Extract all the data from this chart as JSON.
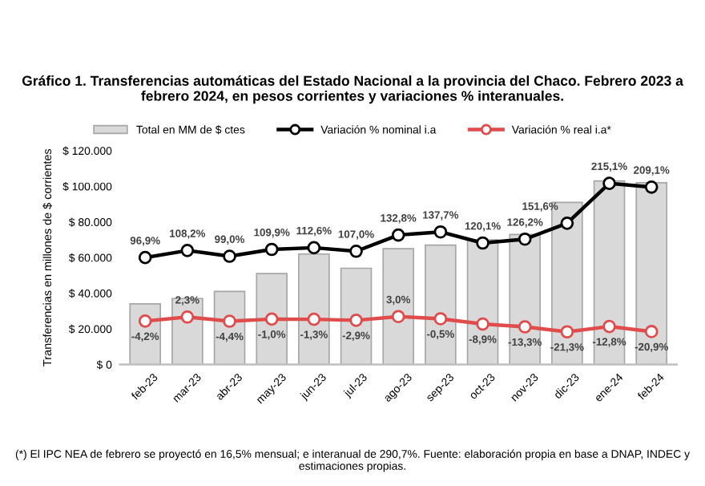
{
  "chart_data": {
    "type": "bar",
    "title": "Gráfico 1. Transferencias automáticas del Estado Nacional a la provincia del Chaco. Febrero 2023 a febrero 2024, en pesos corrientes y variaciones % interanuales.",
    "ylabel": "Transferencias en millones de $ corrientes",
    "categories": [
      "feb-23",
      "mar-23",
      "abr-23",
      "may-23",
      "jun-23",
      "jul-23",
      "ago-23",
      "sep-23",
      "oct-23",
      "nov-23",
      "dic-23",
      "ene-24",
      "feb-24"
    ],
    "series": [
      {
        "name": "Total en MM de $ ctes",
        "color": "#d9d9d9",
        "values": [
          34000,
          37000,
          41000,
          51000,
          62000,
          54000,
          65000,
          67000,
          70000,
          73000,
          91000,
          103000,
          102000
        ]
      },
      {
        "name": "Variación % nominal i.a",
        "type": "line",
        "axis": "y2",
        "color": "#000000",
        "marker": "circle",
        "values": [
          96.9,
          108.2,
          99.0,
          109.9,
          112.6,
          107.0,
          132.8,
          137.7,
          120.1,
          126.2,
          151.6,
          215.1,
          209.1
        ],
        "value_labels": [
          "96,9%",
          "108,2%",
          "99,0%",
          "109,9%",
          "112,6%",
          "107,0%",
          "132,8%",
          "137,7%",
          "120,1%",
          "126,2%",
          "151,6%",
          "215,1%",
          "209,1%"
        ]
      },
      {
        "name": "Variación % real i.a*",
        "type": "line",
        "axis": "y2",
        "color": "#e04b4b",
        "marker": "circle",
        "values": [
          -4.2,
          2.3,
          -4.4,
          -1.0,
          -1.3,
          -2.9,
          3.0,
          -0.5,
          -8.9,
          -13.3,
          -21.3,
          -12.8,
          -20.9
        ],
        "value_labels": [
          "-4,2%",
          "2,3%",
          "-4,4%",
          "-1,0%",
          "-1,3%",
          "-2,9%",
          "3,0%",
          "-0,5%",
          "-8,9%",
          "-13,3%",
          "-21,3%",
          "-12,8%",
          "-20,9%"
        ]
      }
    ],
    "ylim": [
      0,
      120000
    ],
    "yticks": [
      {
        "value": 0,
        "label": "$ 0"
      },
      {
        "value": 20000,
        "label": "$ 20.000"
      },
      {
        "value": 40000,
        "label": "$ 40.000"
      },
      {
        "value": 60000,
        "label": "$ 60.000"
      },
      {
        "value": 80000,
        "label": "$ 80.000"
      },
      {
        "value": 100000,
        "label": "$ 100.000"
      },
      {
        "value": 120000,
        "label": "$ 120.000"
      }
    ],
    "grid": false,
    "legend": "top",
    "annotations": [
      "(*) El IPC NEA de febrero se proyectó en 16,5% mensual; e interanual de 290,7%. Fuente: elaboración propia en base a DNAP, INDEC y estimaciones propias."
    ]
  }
}
